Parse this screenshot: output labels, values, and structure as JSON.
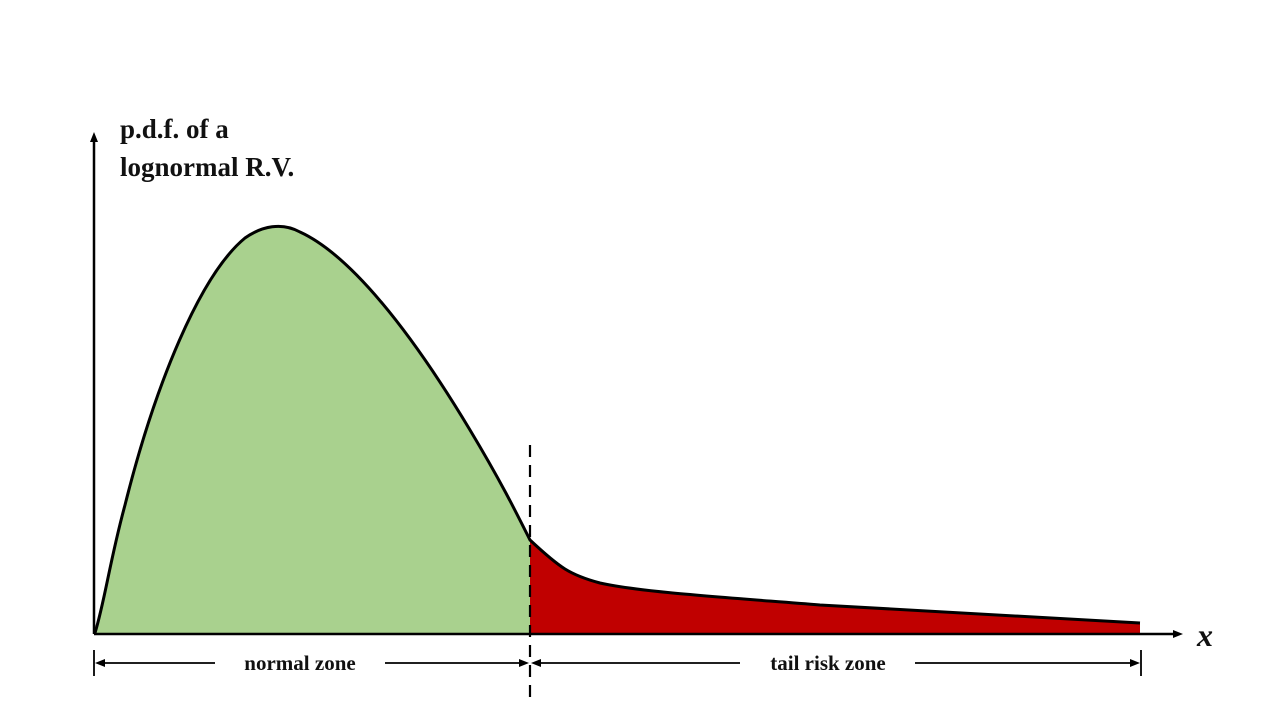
{
  "diagram": {
    "y_axis_label_line1": "p.d.f. of a",
    "y_axis_label_line2": "lognormal R.V.",
    "x_axis_label": "x",
    "zones": [
      {
        "label": "normal zone",
        "color": "#a9d18e"
      },
      {
        "label": "tail risk zone",
        "color": "#c00000"
      }
    ]
  }
}
